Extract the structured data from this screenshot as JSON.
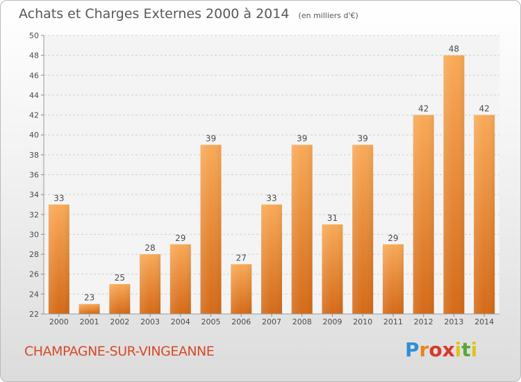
{
  "header": {
    "title": "Achats et Charges Externes 2000 à 2014",
    "subtitle": "(en milliers d'€)"
  },
  "footer": {
    "commune": "CHAMPAGNE-SUR-VINGEANNE",
    "logo_text": "Proxiti"
  },
  "colors": {
    "bar_light": "#f7a650",
    "bar_dark": "#d9701d",
    "commune_text": "#d54a2a",
    "axis_text": "#4a4a4a",
    "grid": "#cfcfcf"
  },
  "chart_data": {
    "type": "bar",
    "title": "Achats et Charges Externes 2000 à 2014",
    "subtitle": "(en milliers d'€)",
    "xlabel": "",
    "ylabel": "",
    "categories": [
      "2000",
      "2001",
      "2002",
      "2003",
      "2004",
      "2005",
      "2006",
      "2007",
      "2008",
      "2009",
      "2010",
      "2011",
      "2012",
      "2013",
      "2014"
    ],
    "values": [
      33,
      23,
      25,
      28,
      29,
      39,
      27,
      33,
      39,
      31,
      39,
      29,
      42,
      48,
      42
    ],
    "ylim": [
      22,
      50
    ],
    "yticks": [
      22,
      24,
      26,
      28,
      30,
      32,
      34,
      36,
      38,
      40,
      42,
      44,
      46,
      48,
      50
    ],
    "grid": "horizontal dashed",
    "data_labels": true,
    "legend": "none"
  }
}
